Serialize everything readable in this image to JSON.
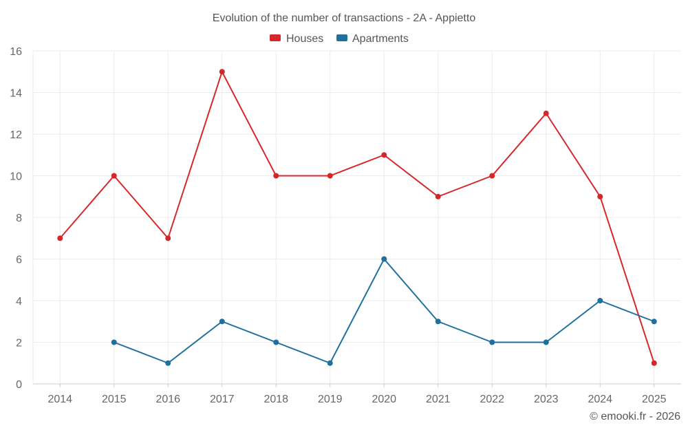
{
  "chart_data": {
    "type": "line",
    "title": "Evolution of the number of transactions - 2A - Appietto",
    "categories": [
      "2014",
      "2015",
      "2016",
      "2017",
      "2018",
      "2019",
      "2020",
      "2021",
      "2022",
      "2023",
      "2024",
      "2025"
    ],
    "series": [
      {
        "name": "Houses",
        "color": "#d62728",
        "values": [
          7,
          10,
          7,
          15,
          10,
          10,
          11,
          9,
          10,
          13,
          9,
          1
        ]
      },
      {
        "name": "Apartments",
        "color": "#1f6f9f",
        "values": [
          null,
          2,
          1,
          3,
          2,
          1,
          6,
          3,
          2,
          2,
          4,
          3
        ]
      }
    ],
    "ylim": [
      0,
      16
    ],
    "yticks": [
      0,
      2,
      4,
      6,
      8,
      10,
      12,
      14,
      16
    ],
    "xlabel": "",
    "ylabel": "",
    "grid": true,
    "legend_position": "top-center"
  },
  "credit": "© emooki.fr - 2026"
}
